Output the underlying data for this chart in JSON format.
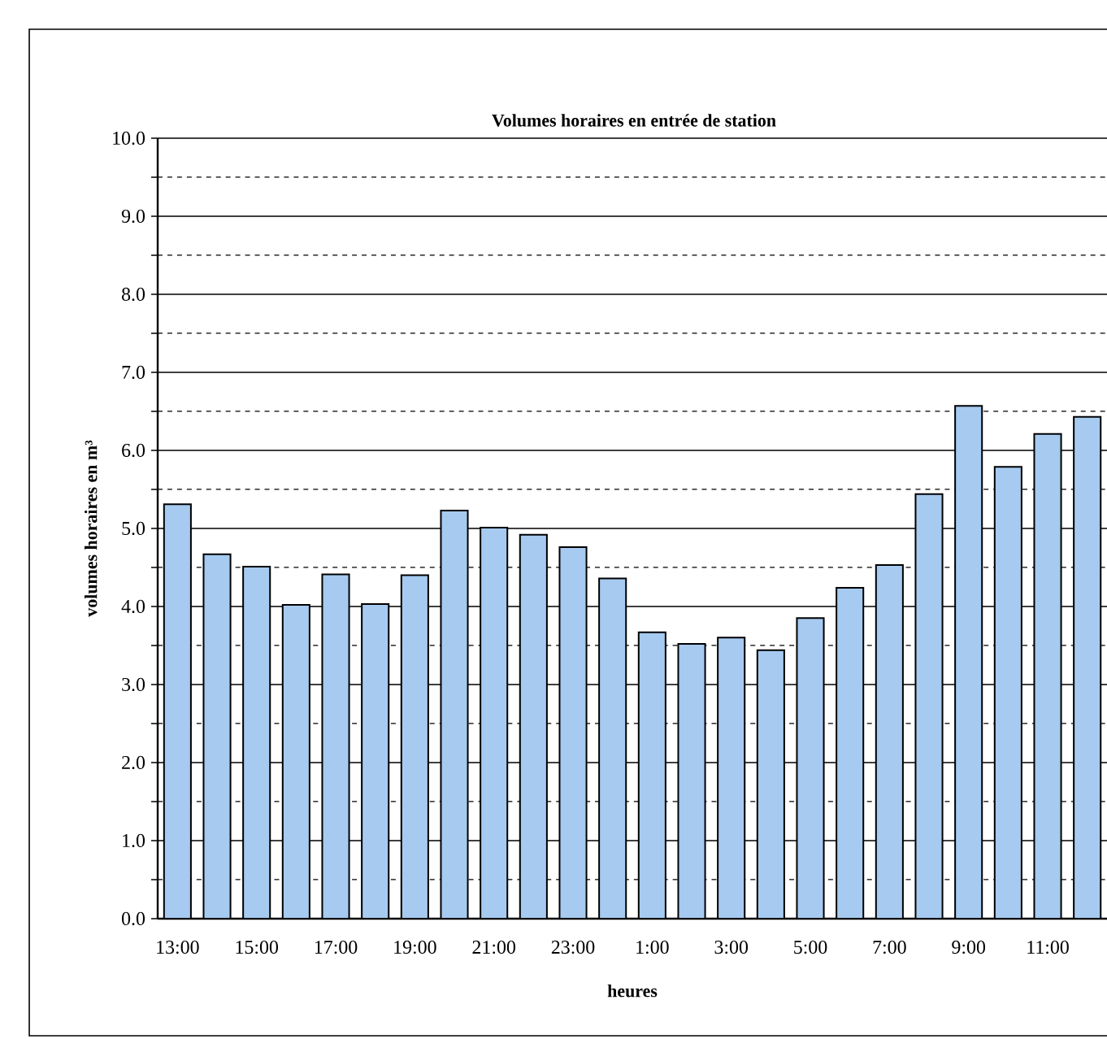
{
  "chart_data": {
    "type": "bar",
    "title": "Volumes horaires en entrée de station",
    "xlabel": "heures",
    "ylabel": "volumes horaires en m³",
    "categories": [
      "13:00",
      null,
      "15:00",
      null,
      "17:00",
      null,
      "19:00",
      null,
      "21:00",
      null,
      "23:00",
      null,
      "1:00",
      null,
      "3:00",
      null,
      "5:00",
      null,
      "7:00",
      null,
      "9:00",
      null,
      "11:00",
      null
    ],
    "values": [
      5.31,
      4.67,
      4.51,
      4.02,
      4.41,
      4.03,
      4.4,
      5.23,
      5.01,
      4.92,
      4.76,
      4.36,
      3.67,
      3.52,
      3.6,
      3.44,
      3.85,
      4.24,
      4.53,
      5.44,
      6.57,
      5.79,
      6.21,
      6.43
    ],
    "color": "#a6caf0",
    "ylim": [
      0,
      10
    ],
    "yticks": [
      {
        "value": 0,
        "label": "0.0"
      },
      {
        "value": 1,
        "label": "1.0"
      },
      {
        "value": 2,
        "label": "2.0"
      },
      {
        "value": 3,
        "label": "3.0"
      },
      {
        "value": 4,
        "label": "4.0"
      },
      {
        "value": 5,
        "label": "5.0"
      },
      {
        "value": 6,
        "label": "6.0"
      },
      {
        "value": 7,
        "label": "7.0"
      },
      {
        "value": 8,
        "label": "8.0"
      },
      {
        "value": 9,
        "label": "9.0"
      },
      {
        "value": 10,
        "label": "10.0"
      }
    ],
    "grid": "y"
  }
}
